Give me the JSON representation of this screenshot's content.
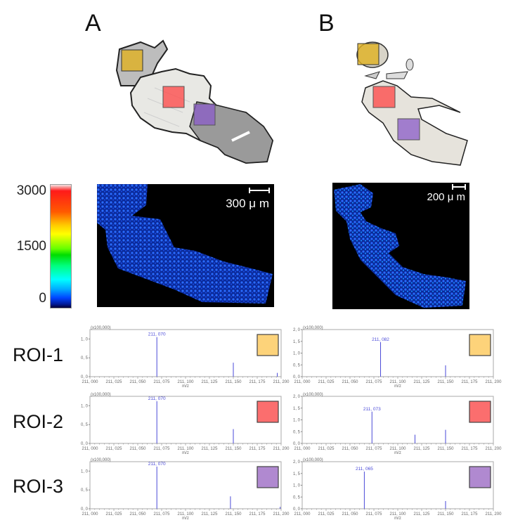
{
  "figure": {
    "panels": [
      {
        "id": "A",
        "label": "A",
        "scale_bar": "300 μ m"
      },
      {
        "id": "B",
        "label": "B",
        "scale_bar": "200 μ m"
      }
    ],
    "colorbar": {
      "max_label": "3000",
      "mid_label": "1500",
      "min_label": "0",
      "colormap": "rainbow (blue→cyan→green→yellow→red)"
    },
    "roi_colors": {
      "ROI-1": "#f5c542",
      "ROI-2": "#f26b6b",
      "ROI-3": "#a57fc4"
    },
    "rows": [
      {
        "label": "ROI-1"
      },
      {
        "label": "ROI-2"
      },
      {
        "label": "ROI-3"
      }
    ],
    "peak_color": "#4a4ad8"
  },
  "chart_data": [
    {
      "type": "bar",
      "title": "Panel A ROI-1",
      "xlabel": "m/z",
      "ylabel": "",
      "y_multiplier": "(x100,000)",
      "xlim": [
        211.0,
        211.2
      ],
      "ylim": [
        0,
        1.25
      ],
      "xticks": [
        "211.000",
        "211.025",
        "211.050",
        "211.075",
        "211.100",
        "211.125",
        "211.150",
        "211.175",
        "211.200"
      ],
      "yticks": [
        "0.0",
        "0.5",
        "1.0"
      ],
      "peaks": [
        {
          "mz": 211.07,
          "intensity": 1.05,
          "label": "211.070"
        },
        {
          "mz": 211.15,
          "intensity": 0.37
        },
        {
          "mz": 211.196,
          "intensity": 0.1
        }
      ],
      "roi_swatch": "#fdd37a"
    },
    {
      "type": "bar",
      "title": "Panel B ROI-1",
      "xlabel": "m/z",
      "ylabel": "",
      "y_multiplier": "(x100,000)",
      "xlim": [
        211.0,
        211.2
      ],
      "ylim": [
        0,
        2.0
      ],
      "xticks": [
        "211.000",
        "211.025",
        "211.050",
        "211.075",
        "211.100",
        "211.125",
        "211.150",
        "211.175",
        "211.200"
      ],
      "yticks": [
        "0.0",
        "0.5",
        "1.0",
        "1.5",
        "2.0"
      ],
      "peaks": [
        {
          "mz": 211.082,
          "intensity": 1.47,
          "label": "211.082"
        },
        {
          "mz": 211.15,
          "intensity": 0.48
        }
      ],
      "roi_swatch": "#fdd37a"
    },
    {
      "type": "bar",
      "title": "Panel A ROI-2",
      "xlabel": "m/z",
      "ylabel": "",
      "y_multiplier": "(x100,000)",
      "xlim": [
        211.0,
        211.2
      ],
      "ylim": [
        0,
        1.25
      ],
      "xticks": [
        "211.000",
        "211.025",
        "211.050",
        "211.075",
        "211.100",
        "211.125",
        "211.150",
        "211.175",
        "211.200"
      ],
      "yticks": [
        "0.0",
        "0.5",
        "1.0"
      ],
      "peaks": [
        {
          "mz": 211.07,
          "intensity": 1.12,
          "label": "211.070"
        },
        {
          "mz": 211.15,
          "intensity": 0.38
        }
      ],
      "roi_swatch": "#fb6e6e"
    },
    {
      "type": "bar",
      "title": "Panel B ROI-2",
      "xlabel": "m/z",
      "ylabel": "",
      "y_multiplier": "(x100,000)",
      "xlim": [
        211.0,
        211.2
      ],
      "ylim": [
        0,
        2.0
      ],
      "xticks": [
        "211.000",
        "211.025",
        "211.050",
        "211.075",
        "211.100",
        "211.125",
        "211.150",
        "211.175",
        "211.200"
      ],
      "yticks": [
        "0.0",
        "0.5",
        "1.0",
        "1.5",
        "2.0"
      ],
      "peaks": [
        {
          "mz": 211.073,
          "intensity": 1.35,
          "label": "211.073"
        },
        {
          "mz": 211.118,
          "intensity": 0.37
        },
        {
          "mz": 211.15,
          "intensity": 0.58
        }
      ],
      "roi_swatch": "#fb6e6e"
    },
    {
      "type": "bar",
      "title": "Panel A ROI-3",
      "xlabel": "m/z",
      "ylabel": "",
      "y_multiplier": "(x100,000)",
      "xlim": [
        211.0,
        211.2
      ],
      "ylim": [
        0,
        1.25
      ],
      "xticks": [
        "211.000",
        "211.025",
        "211.050",
        "211.075",
        "211.100",
        "211.125",
        "211.150",
        "211.175",
        "211.200"
      ],
      "yticks": [
        "0.0",
        "0.5",
        "1.0"
      ],
      "peaks": [
        {
          "mz": 211.07,
          "intensity": 1.12,
          "label": "211.070"
        },
        {
          "mz": 211.147,
          "intensity": 0.33
        },
        {
          "mz": 211.199,
          "intensity": 0.05
        }
      ],
      "roi_swatch": "#b089d0"
    },
    {
      "type": "bar",
      "title": "Panel B ROI-3",
      "xlabel": "m/z",
      "ylabel": "",
      "y_multiplier": "(x100,000)",
      "xlim": [
        211.0,
        211.2
      ],
      "ylim": [
        0,
        2.0
      ],
      "xticks": [
        "211.000",
        "211.025",
        "211.050",
        "211.075",
        "211.100",
        "211.125",
        "211.150",
        "211.175",
        "211.200"
      ],
      "yticks": [
        "0.0",
        "0.5",
        "1.0",
        "1.5",
        "2.0"
      ],
      "peaks": [
        {
          "mz": 211.065,
          "intensity": 1.58,
          "label": "211.065"
        },
        {
          "mz": 211.15,
          "intensity": 0.33
        }
      ],
      "roi_swatch": "#b089d0"
    }
  ]
}
